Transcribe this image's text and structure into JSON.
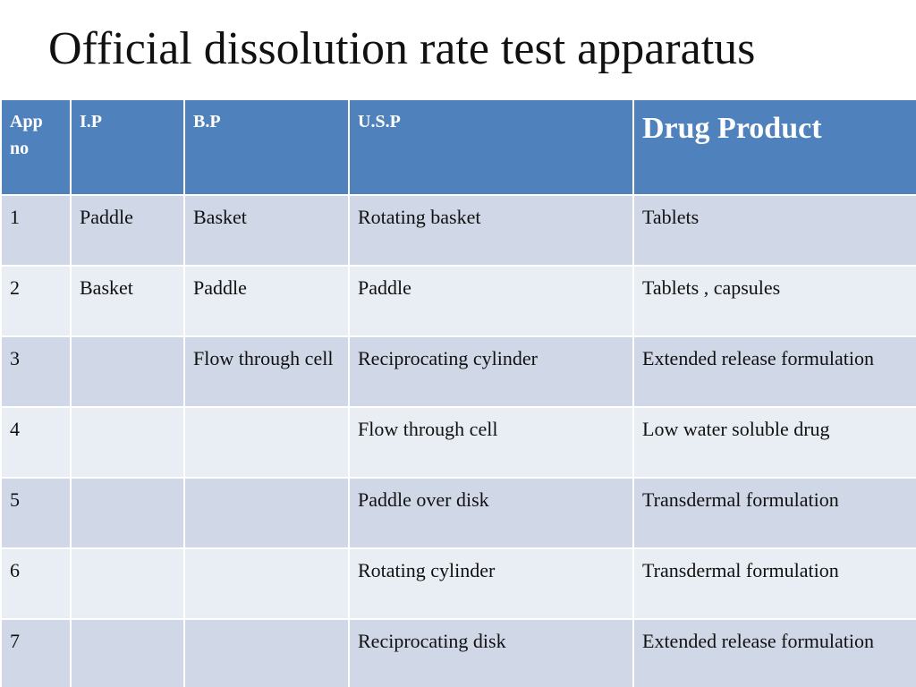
{
  "title": "Official dissolution rate test apparatus",
  "table": {
    "headers": [
      "App no",
      "I.P",
      "B.P",
      "U.S.P",
      "Drug  Product"
    ],
    "rows": [
      [
        "1",
        "Paddle",
        "Basket",
        "Rotating basket",
        "Tablets"
      ],
      [
        "2",
        "Basket",
        "Paddle",
        "Paddle",
        "Tablets , capsules"
      ],
      [
        "3",
        "",
        "Flow through cell",
        "Reciprocating cylinder",
        "Extended release formulation"
      ],
      [
        "4",
        "",
        "",
        "Flow through cell",
        "Low water soluble drug"
      ],
      [
        "5",
        "",
        "",
        "Paddle over disk",
        "Transdermal formulation"
      ],
      [
        "6",
        "",
        "",
        "Rotating cylinder",
        "Transdermal formulation"
      ],
      [
        "7",
        "",
        "",
        "Reciprocating disk",
        "Extended release formulation"
      ]
    ]
  },
  "colors": {
    "header_bg": "#4f81bd",
    "row_odd_bg": "#d0d8e8",
    "row_even_bg": "#e9edf4"
  }
}
